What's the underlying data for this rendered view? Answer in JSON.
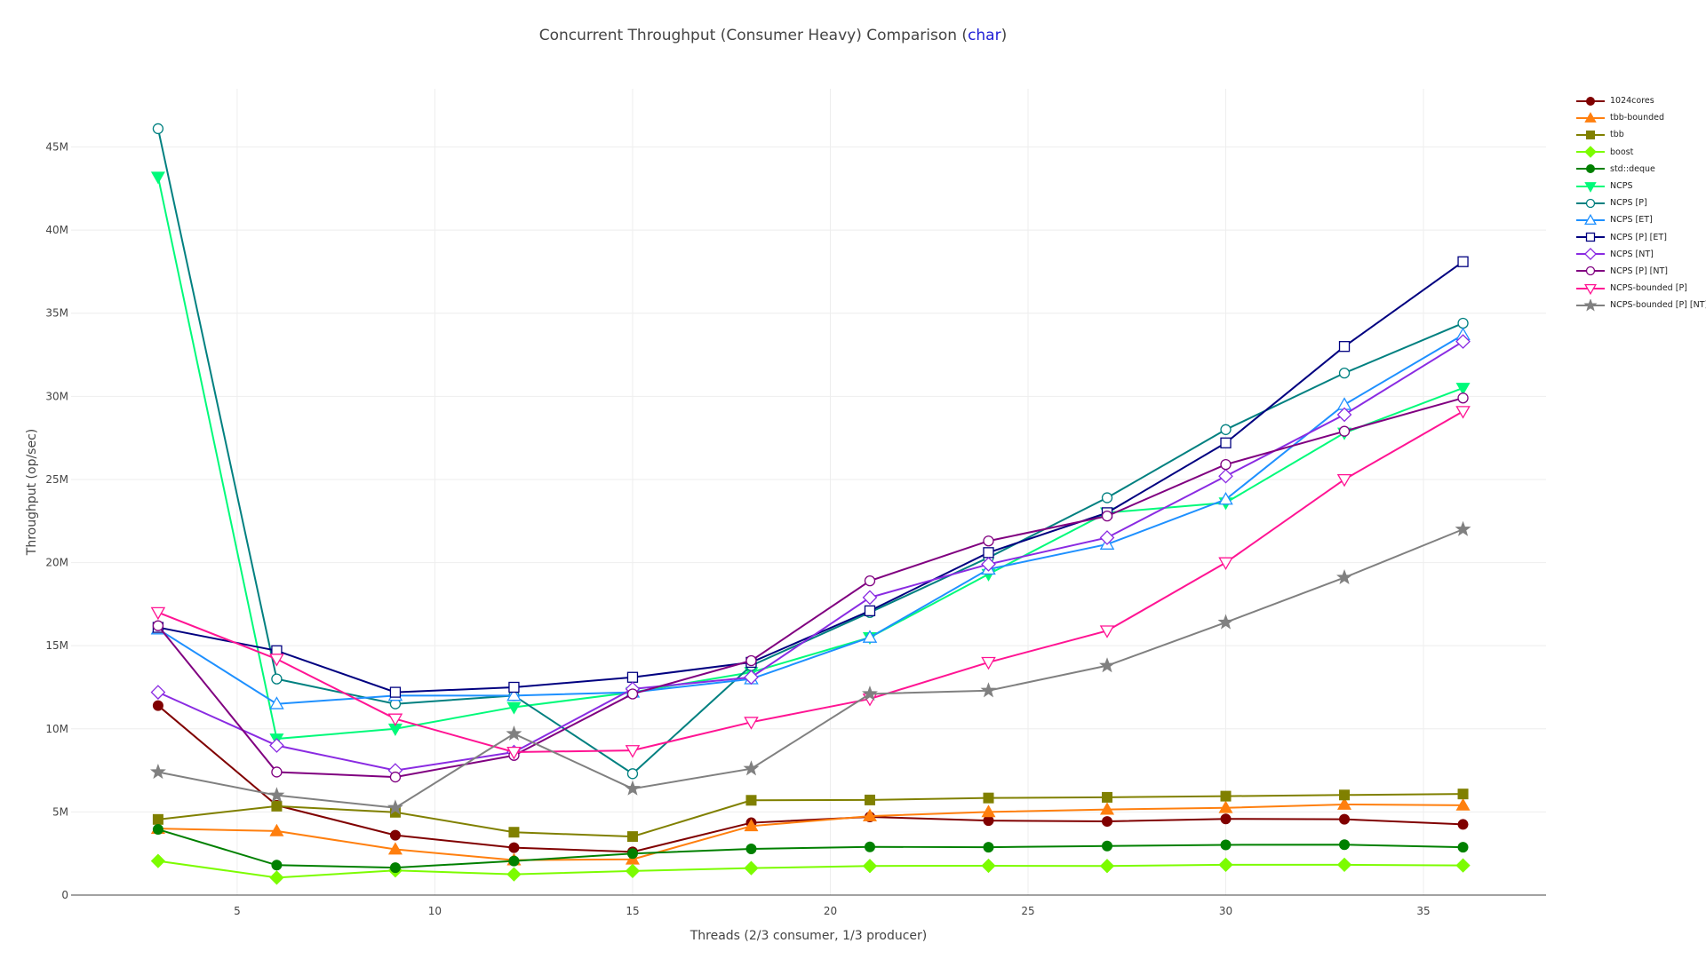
{
  "title_prefix": "Concurrent Throughput (Consumer Heavy) Comparison (",
  "title_highlight": "char",
  "title_suffix": ")",
  "chart_data": {
    "type": "line",
    "title": "Concurrent Throughput (Consumer Heavy) Comparison (char)",
    "xlabel": "Threads (2/3 consumer, 1/3 producer)",
    "ylabel": "Throughput (op/sec)",
    "xlim": [
      0.8,
      38.1
    ],
    "ylim": [
      0,
      48500000
    ],
    "xticks": [
      5,
      10,
      15,
      20,
      25,
      30,
      35
    ],
    "yticks": [
      {
        "v": 0,
        "label": "0"
      },
      {
        "v": 5000000,
        "label": "5M"
      },
      {
        "v": 10000000,
        "label": "10M"
      },
      {
        "v": 15000000,
        "label": "15M"
      },
      {
        "v": 20000000,
        "label": "20M"
      },
      {
        "v": 25000000,
        "label": "25M"
      },
      {
        "v": 30000000,
        "label": "30M"
      },
      {
        "v": 35000000,
        "label": "35M"
      },
      {
        "v": 40000000,
        "label": "40M"
      },
      {
        "v": 45000000,
        "label": "45M"
      }
    ],
    "grid": true,
    "legend_position": "right",
    "x": [
      3,
      6,
      9,
      12,
      15,
      18,
      21,
      24,
      27,
      30,
      33,
      36
    ],
    "series": [
      {
        "name": "1024cores",
        "color": "#800000",
        "marker": "circle",
        "filled": true,
        "values": [
          11400000,
          5400000,
          3600000,
          2850000,
          2600000,
          4350000,
          4700000,
          4480000,
          4430000,
          4580000,
          4560000,
          4250000
        ]
      },
      {
        "name": "tbb-bounded",
        "color": "#ff7f0e",
        "marker": "triangle-up",
        "filled": true,
        "values": [
          4000000,
          3850000,
          2750000,
          2100000,
          2150000,
          4150000,
          4750000,
          5000000,
          5150000,
          5250000,
          5450000,
          5400000
        ]
      },
      {
        "name": "tbb",
        "color": "#808000",
        "marker": "square",
        "filled": true,
        "values": [
          4550000,
          5350000,
          4980000,
          3780000,
          3520000,
          5700000,
          5720000,
          5840000,
          5880000,
          5950000,
          6020000,
          6080000
        ]
      },
      {
        "name": "boost",
        "color": "#7cfc00",
        "marker": "diamond",
        "filled": true,
        "values": [
          2050000,
          1050000,
          1480000,
          1250000,
          1450000,
          1620000,
          1750000,
          1760000,
          1750000,
          1820000,
          1820000,
          1780000
        ]
      },
      {
        "name": "std::deque",
        "color": "#008000",
        "marker": "hexagon",
        "filled": true,
        "values": [
          3950000,
          1800000,
          1650000,
          2050000,
          2500000,
          2780000,
          2900000,
          2880000,
          2950000,
          3020000,
          3030000,
          2880000
        ]
      },
      {
        "name": "NCPS",
        "color": "#00fa7a",
        "marker": "triangle-down",
        "filled": true,
        "values": [
          43200000,
          9400000,
          10000000,
          11300000,
          12200000,
          13400000,
          15500000,
          19300000,
          23000000,
          23600000,
          27800000,
          30500000
        ]
      },
      {
        "name": "NCPS [P]",
        "color": "#008080",
        "marker": "circle",
        "filled": false,
        "values": [
          46100000,
          13000000,
          11500000,
          12000000,
          7300000,
          13800000,
          17000000,
          20300000,
          23900000,
          28000000,
          31400000,
          34400000
        ]
      },
      {
        "name": "NCPS [ET]",
        "color": "#1e90ff",
        "marker": "triangle-up",
        "filled": false,
        "values": [
          16000000,
          11500000,
          12000000,
          12000000,
          12200000,
          13000000,
          15500000,
          19600000,
          21100000,
          23800000,
          29500000,
          33700000
        ]
      },
      {
        "name": "NCPS [P] [ET]",
        "color": "#000080",
        "marker": "square",
        "filled": false,
        "values": [
          16100000,
          14700000,
          12200000,
          12500000,
          13100000,
          14000000,
          17100000,
          20600000,
          23000000,
          27200000,
          33000000,
          38100000
        ]
      },
      {
        "name": "NCPS [NT]",
        "color": "#8a2be2",
        "marker": "diamond",
        "filled": false,
        "values": [
          12200000,
          9000000,
          7500000,
          8600000,
          12400000,
          13100000,
          17900000,
          19900000,
          21500000,
          25200000,
          28900000,
          33300000
        ]
      },
      {
        "name": "NCPS [P] [NT]",
        "color": "#800080",
        "marker": "circle",
        "filled": false,
        "values": [
          16200000,
          7400000,
          7100000,
          8400000,
          12100000,
          14100000,
          18900000,
          21300000,
          22800000,
          25900000,
          27900000,
          29900000
        ]
      },
      {
        "name": "NCPS-bounded [P]",
        "color": "#ff1493",
        "marker": "triangle-down",
        "filled": false,
        "values": [
          17000000,
          14200000,
          10600000,
          8600000,
          8700000,
          10400000,
          11800000,
          14000000,
          15900000,
          20000000,
          25000000,
          29100000
        ]
      },
      {
        "name": "NCPS-bounded [P] [NT]",
        "color": "#808080",
        "marker": "star",
        "filled": true,
        "values": [
          7400000,
          6000000,
          5250000,
          9700000,
          6400000,
          7600000,
          12100000,
          12300000,
          13800000,
          16400000,
          19100000,
          22000000
        ]
      }
    ]
  }
}
